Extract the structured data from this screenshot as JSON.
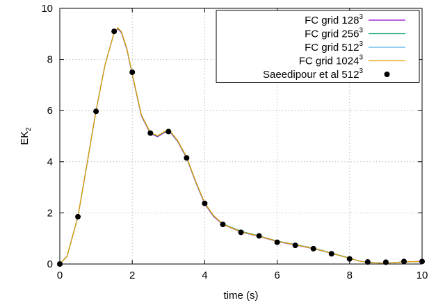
{
  "chart_data": {
    "type": "line",
    "xlabel": "time (s)",
    "ylabel": {
      "base": "EK",
      "sub": "2"
    },
    "xlim": [
      0,
      10
    ],
    "ylim": [
      0,
      10
    ],
    "xticks": [
      "0",
      "2",
      "4",
      "6",
      "8",
      "10"
    ],
    "yticks": [
      "0",
      "2",
      "4",
      "6",
      "8",
      "10"
    ],
    "grid": true,
    "legend_position": "top-right",
    "series": [
      {
        "label": "FC grid 128",
        "sup": "3",
        "color": "#9400d3",
        "style": "line",
        "x": [
          0,
          0.2,
          0.5,
          0.75,
          1.0,
          1.25,
          1.5,
          1.6,
          1.7,
          1.85,
          2.0,
          2.25,
          2.5,
          2.7,
          2.9,
          3.05,
          3.25,
          3.5,
          3.75,
          4.0,
          4.25,
          4.5,
          5.0,
          5.5,
          6.0,
          6.5,
          7.0,
          7.5,
          8.0,
          8.25,
          8.5,
          9.0,
          9.5,
          10.0
        ],
        "y": [
          0,
          0.3,
          1.85,
          3.9,
          6.0,
          7.8,
          9.05,
          9.2,
          9.05,
          8.4,
          7.4,
          5.8,
          5.1,
          4.98,
          5.15,
          5.15,
          4.8,
          4.15,
          3.2,
          2.35,
          1.85,
          1.55,
          1.25,
          1.08,
          0.88,
          0.74,
          0.6,
          0.42,
          0.22,
          0.12,
          0.06,
          0.03,
          0.08,
          0.1
        ]
      },
      {
        "label": "FC grid 256",
        "sup": "3",
        "color": "#009e73",
        "style": "line",
        "x": [
          0,
          0.2,
          0.5,
          0.75,
          1.0,
          1.25,
          1.5,
          1.6,
          1.7,
          1.85,
          2.0,
          2.25,
          2.5,
          2.7,
          2.9,
          3.05,
          3.25,
          3.5,
          3.75,
          4.0,
          4.25,
          4.5,
          5.0,
          5.5,
          6.0,
          6.5,
          7.0,
          7.5,
          8.0,
          8.25,
          8.5,
          9.0,
          9.5,
          10.0
        ],
        "y": [
          0,
          0.3,
          1.85,
          3.9,
          6.0,
          7.8,
          9.05,
          9.22,
          9.07,
          8.42,
          7.42,
          5.82,
          5.12,
          5.0,
          5.17,
          5.17,
          4.82,
          4.17,
          3.22,
          2.37,
          1.87,
          1.57,
          1.28,
          1.1,
          0.9,
          0.76,
          0.62,
          0.43,
          0.23,
          0.12,
          0.06,
          0.03,
          0.08,
          0.1
        ]
      },
      {
        "label": "FC grid 512",
        "sup": "3",
        "color": "#56b4e9",
        "style": "line",
        "x": [
          0,
          0.2,
          0.5,
          0.75,
          1.0,
          1.25,
          1.5,
          1.6,
          1.7,
          1.85,
          2.0,
          2.25,
          2.5,
          2.7,
          2.9,
          3.05,
          3.25,
          3.5,
          3.75,
          4.0,
          4.25,
          4.5,
          5.0,
          5.5,
          6.0,
          6.5,
          7.0,
          7.5,
          8.0,
          8.25,
          8.5,
          9.0,
          9.5,
          10.0
        ],
        "y": [
          0,
          0.3,
          1.85,
          3.9,
          6.0,
          7.8,
          9.05,
          9.23,
          9.08,
          8.43,
          7.43,
          5.83,
          5.13,
          5.01,
          5.18,
          5.18,
          4.83,
          4.18,
          3.23,
          2.38,
          1.88,
          1.56,
          1.26,
          1.09,
          0.89,
          0.75,
          0.61,
          0.42,
          0.22,
          0.12,
          0.06,
          0.03,
          0.08,
          0.1
        ]
      },
      {
        "label": "FC grid 1024",
        "sup": "3",
        "color": "#e69f00",
        "style": "line",
        "x": [
          0,
          0.2,
          0.5,
          0.75,
          1.0,
          1.25,
          1.5,
          1.6,
          1.7,
          1.85,
          2.0,
          2.25,
          2.5,
          2.7,
          2.9,
          3.05,
          3.25,
          3.5,
          3.75,
          4.0,
          4.25,
          4.5,
          5.0,
          5.5,
          6.0,
          6.5,
          7.0,
          7.5,
          8.0,
          8.25,
          8.5,
          9.0,
          9.5,
          10.0
        ],
        "y": [
          0,
          0.3,
          1.85,
          3.9,
          6.0,
          7.8,
          9.05,
          9.24,
          9.09,
          8.44,
          7.44,
          5.84,
          5.14,
          5.02,
          5.19,
          5.19,
          4.84,
          4.19,
          3.24,
          2.39,
          1.89,
          1.56,
          1.26,
          1.09,
          0.89,
          0.75,
          0.61,
          0.42,
          0.22,
          0.12,
          0.06,
          0.03,
          0.08,
          0.1
        ]
      },
      {
        "label": "Saeedipour et al 512",
        "sup": "3",
        "color": "#000000",
        "style": "points",
        "x": [
          0,
          0.5,
          1.0,
          1.5,
          2.0,
          2.5,
          3.0,
          3.5,
          4.0,
          4.5,
          5.0,
          5.5,
          6.0,
          6.5,
          7.0,
          7.5,
          8.0,
          8.5,
          9.0,
          9.5,
          10.0
        ],
        "y": [
          0,
          1.85,
          5.97,
          9.1,
          7.5,
          5.12,
          5.18,
          4.15,
          2.37,
          1.55,
          1.24,
          1.1,
          0.85,
          0.73,
          0.6,
          0.4,
          0.2,
          0.08,
          0.07,
          0.1,
          0.1
        ]
      }
    ]
  }
}
